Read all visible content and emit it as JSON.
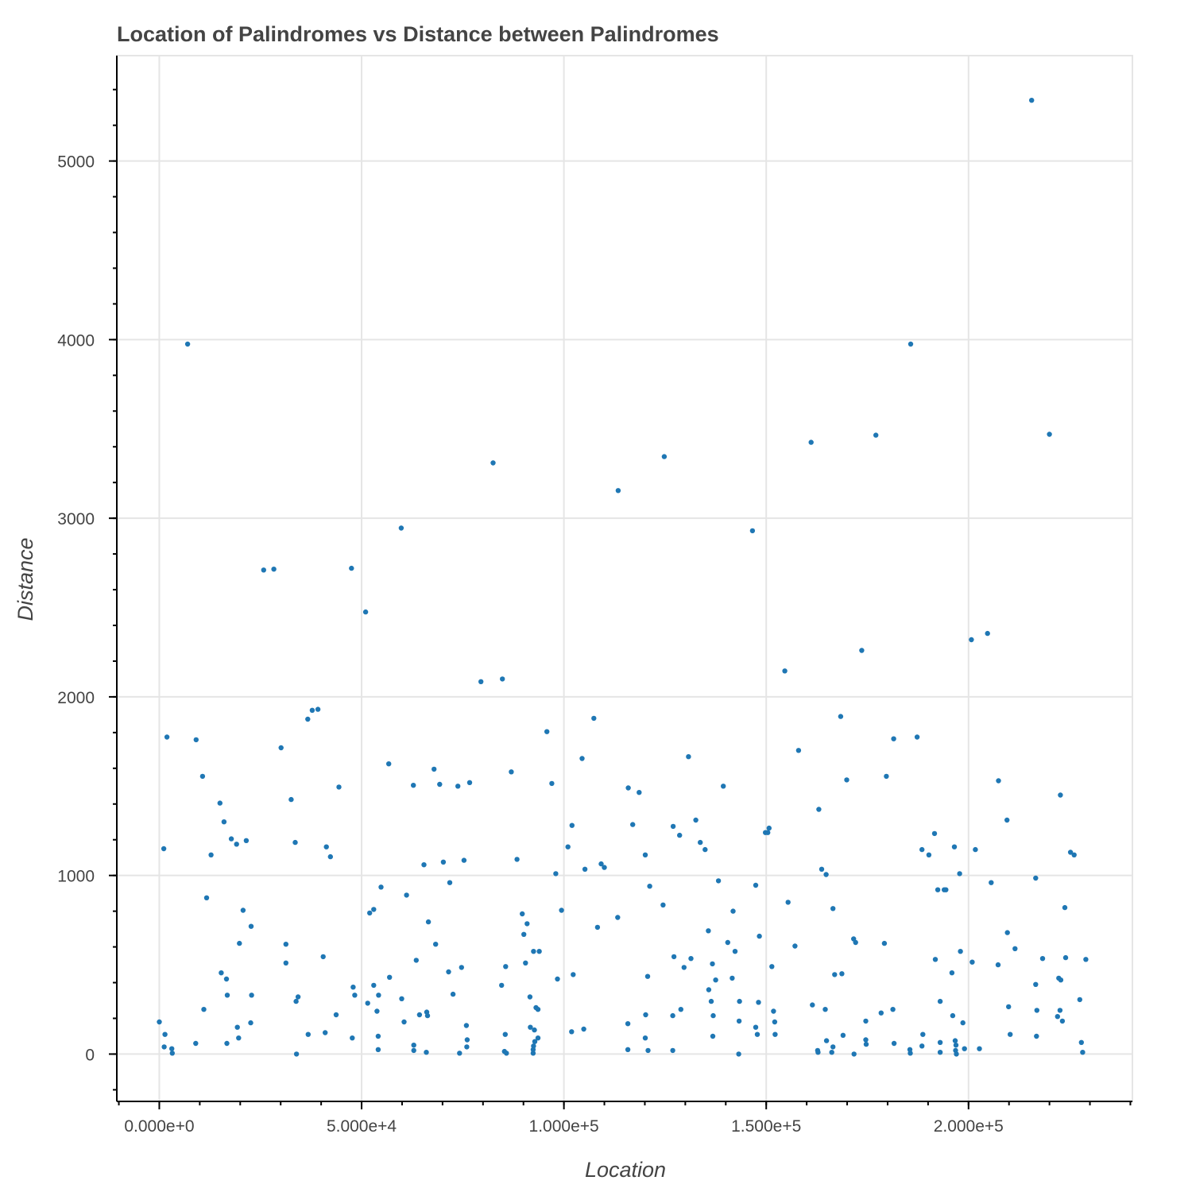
{
  "chart_data": {
    "type": "scatter",
    "title": "Location of Palindromes vs Distance between Palindromes",
    "xlabel": "Location",
    "ylabel": "Distance",
    "xlim": [
      -10500,
      240500
    ],
    "ylim": [
      -265,
      5590
    ],
    "x_ticks": [
      0,
      50000,
      100000,
      150000,
      200000
    ],
    "x_tick_labels": [
      "0.000e+0",
      "5.000e+4",
      "1.000e+5",
      "1.500e+5",
      "2.000e+5"
    ],
    "y_ticks": [
      0,
      1000,
      2000,
      3000,
      4000,
      5000
    ],
    "y_tick_labels": [
      "0",
      "1000",
      "2000",
      "3000",
      "4000",
      "5000"
    ],
    "x_minor_step": 10000,
    "y_minor_step": 200,
    "grid": true,
    "legend": "none",
    "color": "#1f77b4",
    "points": [
      [
        7000,
        3975
      ],
      [
        82500,
        3310
      ],
      [
        124800,
        3345
      ],
      [
        113400,
        3155
      ],
      [
        59800,
        2945
      ],
      [
        146600,
        2930
      ],
      [
        161100,
        3425
      ],
      [
        177100,
        3465
      ],
      [
        185700,
        3975
      ],
      [
        220000,
        3470
      ],
      [
        215600,
        5340
      ],
      [
        25800,
        2710
      ],
      [
        28300,
        2715
      ],
      [
        47500,
        2720
      ],
      [
        51000,
        2475
      ],
      [
        79500,
        2085
      ],
      [
        84800,
        2100
      ],
      [
        154600,
        2145
      ],
      [
        173600,
        2260
      ],
      [
        200700,
        2320
      ],
      [
        204700,
        2355
      ],
      [
        37800,
        1925
      ],
      [
        39200,
        1930
      ],
      [
        36700,
        1875
      ],
      [
        30100,
        1715
      ],
      [
        1900,
        1775
      ],
      [
        9100,
        1760
      ],
      [
        10700,
        1555
      ],
      [
        15000,
        1405
      ],
      [
        16000,
        1300
      ],
      [
        17800,
        1205
      ],
      [
        19100,
        1175
      ],
      [
        21500,
        1195
      ],
      [
        1100,
        1150
      ],
      [
        12800,
        1115
      ],
      [
        11700,
        875
      ],
      [
        32600,
        1425
      ],
      [
        33600,
        1185
      ],
      [
        41300,
        1160
      ],
      [
        42300,
        1105
      ],
      [
        44400,
        1495
      ],
      [
        56700,
        1625
      ],
      [
        62800,
        1505
      ],
      [
        67900,
        1595
      ],
      [
        69300,
        1510
      ],
      [
        73800,
        1500
      ],
      [
        76700,
        1520
      ],
      [
        87000,
        1580
      ],
      [
        70200,
        1075
      ],
      [
        75300,
        1085
      ],
      [
        65400,
        1060
      ],
      [
        95800,
        1805
      ],
      [
        97000,
        1515
      ],
      [
        98000,
        1010
      ],
      [
        102000,
        1280
      ],
      [
        101000,
        1160
      ],
      [
        104500,
        1655
      ],
      [
        105200,
        1035
      ],
      [
        107400,
        1880
      ],
      [
        109200,
        1065
      ],
      [
        110000,
        1045
      ],
      [
        115900,
        1490
      ],
      [
        117000,
        1285
      ],
      [
        118600,
        1465
      ],
      [
        120100,
        1115
      ],
      [
        121200,
        940
      ],
      [
        127000,
        1275
      ],
      [
        128600,
        1225
      ],
      [
        130800,
        1665
      ],
      [
        132600,
        1310
      ],
      [
        133700,
        1185
      ],
      [
        134900,
        1145
      ],
      [
        139400,
        1500
      ],
      [
        138200,
        970
      ],
      [
        141800,
        800
      ],
      [
        147400,
        945
      ],
      [
        149800,
        1240
      ],
      [
        150700,
        1265
      ],
      [
        155400,
        850
      ],
      [
        158000,
        1700
      ],
      [
        163000,
        1370
      ],
      [
        163700,
        1035
      ],
      [
        164800,
        1005
      ],
      [
        168400,
        1890
      ],
      [
        169900,
        1535
      ],
      [
        179700,
        1555
      ],
      [
        181500,
        1765
      ],
      [
        187300,
        1775
      ],
      [
        188500,
        1145
      ],
      [
        190200,
        1115
      ],
      [
        191600,
        1235
      ],
      [
        192400,
        920
      ],
      [
        194400,
        920
      ],
      [
        197800,
        1010
      ],
      [
        196500,
        1160
      ],
      [
        201700,
        1145
      ],
      [
        205600,
        960
      ],
      [
        207400,
        1530
      ],
      [
        209500,
        1310
      ],
      [
        216600,
        985
      ],
      [
        222700,
        1450
      ],
      [
        223800,
        820
      ],
      [
        225200,
        1130
      ],
      [
        226100,
        1115
      ],
      [
        88400,
        1090
      ],
      [
        71800,
        960
      ],
      [
        66500,
        740
      ],
      [
        61100,
        890
      ],
      [
        54800,
        935
      ],
      [
        52000,
        790
      ],
      [
        53000,
        810
      ],
      [
        22700,
        715
      ],
      [
        20700,
        805
      ],
      [
        19800,
        620
      ],
      [
        31300,
        615
      ],
      [
        22800,
        330
      ],
      [
        15300,
        455
      ],
      [
        16600,
        420
      ],
      [
        16800,
        330
      ],
      [
        11000,
        250
      ],
      [
        9000,
        60
      ],
      [
        1400,
        110
      ],
      [
        1200,
        40
      ],
      [
        3100,
        30
      ],
      [
        3200,
        5
      ],
      [
        0,
        180
      ],
      [
        16700,
        60
      ],
      [
        19600,
        90
      ],
      [
        19300,
        150
      ],
      [
        22600,
        175
      ],
      [
        31300,
        510
      ],
      [
        33800,
        295
      ],
      [
        34300,
        320
      ],
      [
        33900,
        0
      ],
      [
        36800,
        110
      ],
      [
        41000,
        120
      ],
      [
        43700,
        220
      ],
      [
        40500,
        545
      ],
      [
        47900,
        375
      ],
      [
        48300,
        330
      ],
      [
        47700,
        90
      ],
      [
        51500,
        285
      ],
      [
        53000,
        385
      ],
      [
        53800,
        240
      ],
      [
        54200,
        330
      ],
      [
        54100,
        100
      ],
      [
        54100,
        25
      ],
      [
        56900,
        430
      ],
      [
        59900,
        310
      ],
      [
        60500,
        180
      ],
      [
        63500,
        525
      ],
      [
        62900,
        50
      ],
      [
        62900,
        20
      ],
      [
        64300,
        220
      ],
      [
        66100,
        235
      ],
      [
        66300,
        215
      ],
      [
        66000,
        10
      ],
      [
        68300,
        615
      ],
      [
        71500,
        460
      ],
      [
        72600,
        335
      ],
      [
        74700,
        485
      ],
      [
        74200,
        5
      ],
      [
        75900,
        160
      ],
      [
        76100,
        80
      ],
      [
        76000,
        40
      ],
      [
        84600,
        385
      ],
      [
        85600,
        490
      ],
      [
        85500,
        110
      ],
      [
        85300,
        15
      ],
      [
        85800,
        5
      ],
      [
        89700,
        785
      ],
      [
        90100,
        670
      ],
      [
        90900,
        730
      ],
      [
        90500,
        510
      ],
      [
        91600,
        320
      ],
      [
        92500,
        575
      ],
      [
        93900,
        575
      ],
      [
        93100,
        260
      ],
      [
        93600,
        250
      ],
      [
        91700,
        150
      ],
      [
        92700,
        135
      ],
      [
        93600,
        90
      ],
      [
        92800,
        70
      ],
      [
        92500,
        45
      ],
      [
        92400,
        25
      ],
      [
        92400,
        5
      ],
      [
        99400,
        805
      ],
      [
        98400,
        420
      ],
      [
        102300,
        445
      ],
      [
        101900,
        125
      ],
      [
        104900,
        140
      ],
      [
        108300,
        710
      ],
      [
        113300,
        765
      ],
      [
        115800,
        170
      ],
      [
        115800,
        25
      ],
      [
        120200,
        220
      ],
      [
        120100,
        90
      ],
      [
        120700,
        435
      ],
      [
        120800,
        20
      ],
      [
        124500,
        835
      ],
      [
        126900,
        215
      ],
      [
        127200,
        545
      ],
      [
        126900,
        20
      ],
      [
        128900,
        250
      ],
      [
        129700,
        485
      ],
      [
        131400,
        535
      ],
      [
        135700,
        690
      ],
      [
        135800,
        360
      ],
      [
        136400,
        295
      ],
      [
        136900,
        215
      ],
      [
        136700,
        505
      ],
      [
        137500,
        415
      ],
      [
        136800,
        100
      ],
      [
        140500,
        625
      ],
      [
        141600,
        425
      ],
      [
        142300,
        575
      ],
      [
        143400,
        295
      ],
      [
        143300,
        185
      ],
      [
        143200,
        0
      ],
      [
        147400,
        150
      ],
      [
        148300,
        660
      ],
      [
        148100,
        290
      ],
      [
        147800,
        110
      ],
      [
        150400,
        1240
      ],
      [
        151400,
        490
      ],
      [
        151800,
        240
      ],
      [
        152100,
        180
      ],
      [
        152200,
        110
      ],
      [
        157100,
        605
      ],
      [
        161400,
        275
      ],
      [
        162700,
        20
      ],
      [
        162800,
        10
      ],
      [
        164600,
        250
      ],
      [
        164900,
        75
      ],
      [
        166500,
        815
      ],
      [
        166900,
        445
      ],
      [
        166500,
        40
      ],
      [
        166200,
        10
      ],
      [
        168700,
        450
      ],
      [
        169000,
        105
      ],
      [
        171600,
        645
      ],
      [
        172100,
        625
      ],
      [
        171700,
        0
      ],
      [
        174600,
        185
      ],
      [
        174600,
        80
      ],
      [
        174700,
        55
      ],
      [
        178400,
        230
      ],
      [
        179200,
        620
      ],
      [
        181300,
        250
      ],
      [
        181600,
        60
      ],
      [
        185500,
        25
      ],
      [
        185600,
        5
      ],
      [
        188700,
        110
      ],
      [
        188500,
        45
      ],
      [
        191800,
        530
      ],
      [
        193000,
        295
      ],
      [
        193000,
        65
      ],
      [
        193000,
        10
      ],
      [
        194000,
        920
      ],
      [
        195900,
        455
      ],
      [
        196100,
        215
      ],
      [
        196700,
        75
      ],
      [
        196900,
        50
      ],
      [
        196800,
        20
      ],
      [
        197000,
        0
      ],
      [
        198000,
        575
      ],
      [
        198600,
        175
      ],
      [
        199000,
        30
      ],
      [
        200900,
        515
      ],
      [
        202700,
        30
      ],
      [
        207300,
        500
      ],
      [
        209600,
        680
      ],
      [
        209900,
        265
      ],
      [
        210300,
        110
      ],
      [
        211500,
        590
      ],
      [
        216600,
        390
      ],
      [
        216900,
        245
      ],
      [
        216800,
        100
      ],
      [
        218300,
        535
      ],
      [
        222300,
        425
      ],
      [
        222800,
        415
      ],
      [
        222000,
        210
      ],
      [
        222600,
        245
      ],
      [
        223200,
        185
      ],
      [
        224000,
        540
      ],
      [
        227500,
        305
      ],
      [
        227900,
        65
      ],
      [
        228200,
        10
      ],
      [
        229000,
        530
      ]
    ]
  }
}
